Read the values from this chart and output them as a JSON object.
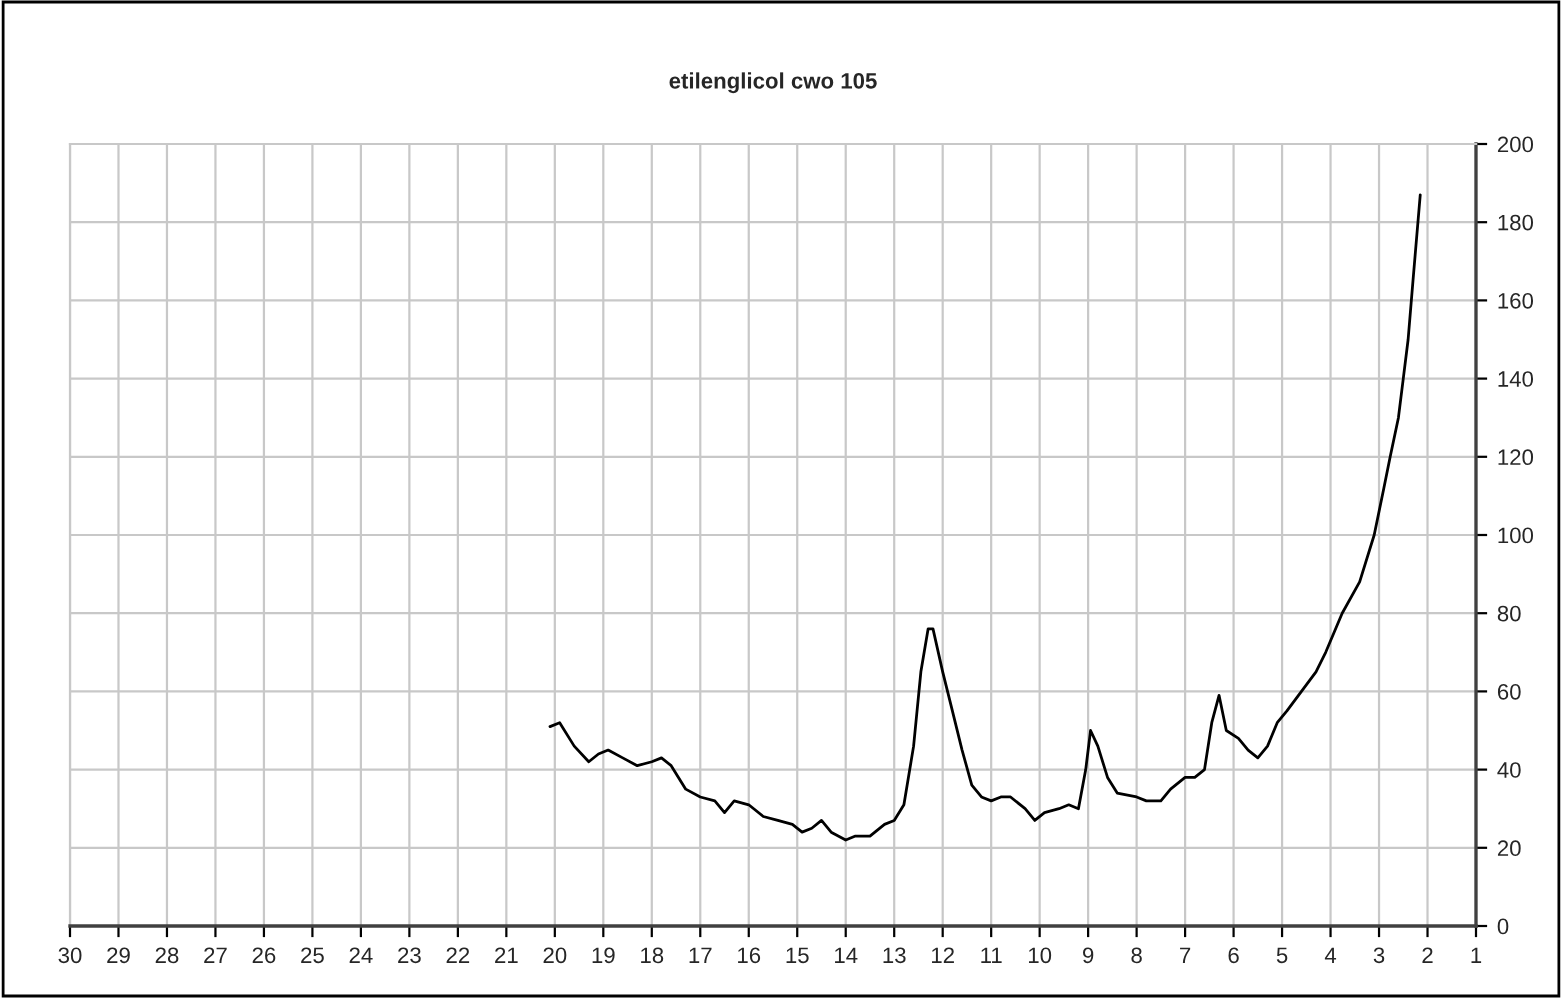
{
  "chart_data": {
    "type": "line",
    "title": "etilenglicol cwo 105",
    "x": [
      20.1,
      19.9,
      19.6,
      19.3,
      19.1,
      18.9,
      18.6,
      18.3,
      18.0,
      17.8,
      17.6,
      17.3,
      17.0,
      16.7,
      16.5,
      16.3,
      16.0,
      15.7,
      15.4,
      15.1,
      14.9,
      14.7,
      14.5,
      14.3,
      14.0,
      13.8,
      13.5,
      13.2,
      13.0,
      12.8,
      12.6,
      12.45,
      12.3,
      12.2,
      12.0,
      11.8,
      11.6,
      11.4,
      11.2,
      11.0,
      10.8,
      10.6,
      10.3,
      10.1,
      9.9,
      9.6,
      9.4,
      9.2,
      9.05,
      8.95,
      8.8,
      8.6,
      8.4,
      8.0,
      7.8,
      7.5,
      7.3,
      7.0,
      6.8,
      6.6,
      6.45,
      6.3,
      6.15,
      5.9,
      5.7,
      5.5,
      5.3,
      5.1,
      4.9,
      4.6,
      4.3,
      4.1,
      3.76,
      3.4,
      3.1,
      2.9,
      2.77,
      2.6,
      2.5,
      2.4,
      2.3,
      2.15
    ],
    "series": [
      {
        "color": "#000000",
        "values": [
          51,
          52,
          46,
          42,
          44,
          45,
          43,
          41,
          42,
          43,
          41,
          35,
          33,
          32,
          29,
          32,
          31,
          28,
          27,
          26,
          24,
          25,
          27,
          24,
          22,
          23,
          23,
          26,
          27,
          31,
          46,
          65,
          76,
          76,
          65,
          55,
          45,
          36,
          33,
          32,
          33,
          33,
          30,
          27,
          29,
          30,
          31,
          30,
          40,
          50,
          46,
          38,
          34,
          33,
          32,
          32,
          35,
          38,
          38,
          40,
          52,
          59,
          50,
          48,
          45,
          43,
          46,
          52,
          55,
          60,
          65,
          70,
          80,
          88,
          100,
          112,
          120,
          130,
          140,
          150,
          165,
          187
        ]
      }
    ],
    "xlim": [
      30,
      1
    ],
    "xticks": [
      30,
      29,
      28,
      27,
      26,
      25,
      24,
      23,
      22,
      21,
      20,
      19,
      18,
      17,
      16,
      15,
      14,
      13,
      12,
      11,
      10,
      9,
      8,
      7,
      6,
      5,
      4,
      3,
      2,
      1
    ],
    "ylim": [
      0,
      200
    ],
    "yticks": [
      0,
      20,
      40,
      60,
      80,
      100,
      120,
      140,
      160,
      180,
      200
    ],
    "grid": true
  }
}
